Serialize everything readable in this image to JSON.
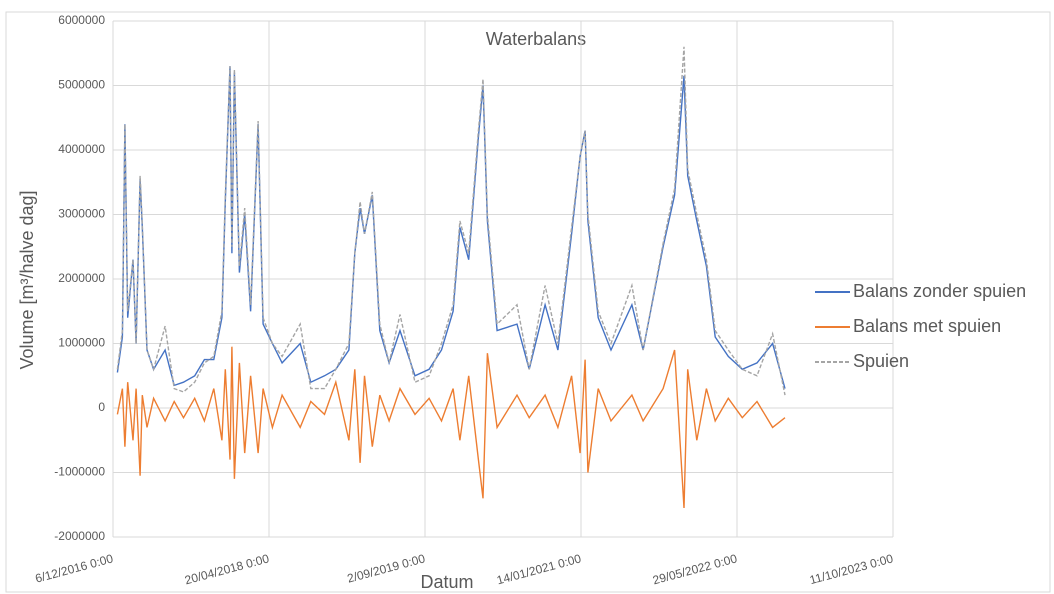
{
  "chart_data": {
    "type": "line",
    "title": "Waterbalans",
    "x_label": "Datum",
    "y_label": "Volume  [m³/halve dag]",
    "x": [
      "2016-12-20",
      "2017-01-05",
      "2017-01-13",
      "2017-01-22",
      "2017-02-08",
      "2017-02-18",
      "2017-03-03",
      "2017-03-10",
      "2017-03-25",
      "2017-04-15",
      "2017-05-22",
      "2017-06-20",
      "2017-07-20",
      "2017-08-25",
      "2017-09-25",
      "2017-10-25",
      "2017-11-20",
      "2017-12-01",
      "2017-12-16",
      "2017-12-22",
      "2017-12-30",
      "2018-01-15",
      "2018-02-01",
      "2018-02-20",
      "2018-03-16",
      "2018-04-01",
      "2018-05-01",
      "2018-06-01",
      "2018-07-29",
      "2018-09-01",
      "2018-10-15",
      "2018-11-20",
      "2019-01-01",
      "2019-01-20",
      "2019-02-06",
      "2019-02-20",
      "2019-03-17",
      "2019-04-10",
      "2019-05-10",
      "2019-06-14",
      "2019-08-01",
      "2019-09-15",
      "2019-10-25",
      "2019-12-01",
      "2019-12-23",
      "2020-01-20",
      "2020-02-20",
      "2020-03-06",
      "2020-03-20",
      "2020-04-20",
      "2020-06-23",
      "2020-08-01",
      "2020-09-21",
      "2020-11-01",
      "2020-12-15",
      "2021-01-11",
      "2021-01-27",
      "2021-02-05",
      "2021-03-10",
      "2021-04-20",
      "2021-06-26",
      "2021-08-01",
      "2021-10-04",
      "2021-11-10",
      "2021-12-10",
      "2021-12-22",
      "2022-01-20",
      "2022-02-20",
      "2022-03-20",
      "2022-05-01",
      "2022-06-15",
      "2022-08-01",
      "2022-09-20",
      "2022-10-30"
    ],
    "series": [
      {
        "name": "Balans zonder spuien",
        "color": "#4472c4",
        "dash": false,
        "values": [
          550000,
          1100000,
          4400000,
          1400000,
          2300000,
          1000000,
          3550000,
          2800000,
          900000,
          600000,
          900000,
          350000,
          400000,
          500000,
          750000,
          750000,
          1400000,
          3200000,
          5300000,
          2400000,
          5200000,
          2100000,
          3000000,
          1500000,
          4400000,
          1300000,
          1000000,
          700000,
          1000000,
          400000,
          500000,
          600000,
          900000,
          2400000,
          3100000,
          2700000,
          3300000,
          1200000,
          700000,
          1200000,
          500000,
          600000,
          900000,
          1500000,
          2800000,
          2300000,
          4200000,
          5000000,
          2900000,
          1200000,
          1300000,
          600000,
          1600000,
          900000,
          2700000,
          3900000,
          4300000,
          2900000,
          1400000,
          900000,
          1600000,
          900000,
          2500000,
          3300000,
          5150000,
          3600000,
          2900000,
          2200000,
          1100000,
          800000,
          600000,
          700000,
          1000000,
          300000
        ]
      },
      {
        "name": "Balans met spuien",
        "color": "#ed7d31",
        "dash": false,
        "values": [
          -100000,
          300000,
          -600000,
          400000,
          -500000,
          300000,
          -1050000,
          200000,
          -300000,
          150000,
          -200000,
          100000,
          -150000,
          150000,
          -200000,
          300000,
          -500000,
          600000,
          -800000,
          950000,
          -1100000,
          700000,
          -700000,
          500000,
          -700000,
          300000,
          -300000,
          200000,
          -300000,
          100000,
          -100000,
          400000,
          -500000,
          600000,
          -850000,
          500000,
          -600000,
          200000,
          -200000,
          300000,
          -100000,
          150000,
          -200000,
          300000,
          -500000,
          500000,
          -800000,
          -1400000,
          850000,
          -300000,
          200000,
          -150000,
          200000,
          -300000,
          500000,
          -700000,
          750000,
          -1000000,
          300000,
          -200000,
          200000,
          -200000,
          300000,
          900000,
          -1550000,
          600000,
          -500000,
          300000,
          -200000,
          150000,
          -150000,
          100000,
          -300000,
          -150000
        ]
      },
      {
        "name": "Spuien",
        "color": "#a5a5a5",
        "dash": true,
        "values": [
          600000,
          1200000,
          4400000,
          1500000,
          2300000,
          1000000,
          3600000,
          2850000,
          900000,
          600000,
          1270000,
          300000,
          250000,
          400000,
          700000,
          800000,
          1500000,
          3300000,
          5300000,
          2500000,
          5250000,
          2200000,
          3100000,
          1600000,
          4450000,
          1400000,
          1000000,
          800000,
          1300000,
          300000,
          300000,
          600000,
          1000000,
          2400000,
          3200000,
          2700000,
          3350000,
          1300000,
          700000,
          1450000,
          400000,
          500000,
          1000000,
          1600000,
          2900000,
          2400000,
          4300000,
          5100000,
          3000000,
          1300000,
          1600000,
          600000,
          1900000,
          1000000,
          2800000,
          3900000,
          4300000,
          3000000,
          1500000,
          1000000,
          1900000,
          900000,
          2550000,
          3400000,
          5600000,
          3700000,
          3000000,
          2300000,
          1200000,
          900000,
          600000,
          500000,
          1150000,
          200000
        ]
      }
    ],
    "xlim": [
      "2016-12-06",
      "2023-10-11"
    ],
    "xticks": [
      {
        "value": "2016-12-06",
        "label": "6/12/2016 0:00"
      },
      {
        "value": "2018-04-20",
        "label": "20/04/2018 0:00"
      },
      {
        "value": "2019-09-02",
        "label": "2/09/2019 0:00"
      },
      {
        "value": "2021-01-14",
        "label": "14/01/2021 0:00"
      },
      {
        "value": "2022-05-29",
        "label": "29/05/2022 0:00"
      },
      {
        "value": "2023-10-11",
        "label": "11/10/2023 0:00"
      }
    ],
    "ylim": [
      -2000000,
      6000000
    ],
    "yticks": [
      -2000000,
      -1000000,
      0,
      1000000,
      2000000,
      3000000,
      4000000,
      5000000,
      6000000
    ],
    "grid": true,
    "legend": "right"
  }
}
